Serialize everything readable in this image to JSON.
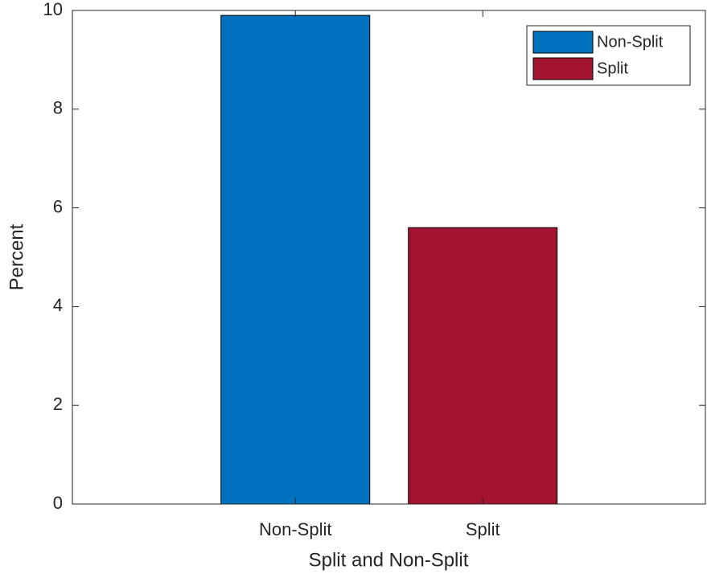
{
  "chart_data": {
    "type": "bar",
    "xlabel": "Split and Non-Split",
    "ylabel": "Percent",
    "categories": [
      "Non-Split",
      "Split"
    ],
    "series": [
      {
        "name": "Non-Split",
        "color": "#0072BD",
        "values": [
          9.9,
          null
        ]
      },
      {
        "name": "Split",
        "color": "#A2142F",
        "values": [
          null,
          5.6
        ]
      }
    ],
    "ylim": [
      0,
      10
    ],
    "yticks": [
      0,
      2,
      4,
      6,
      8,
      10
    ],
    "legend": "top-right"
  }
}
